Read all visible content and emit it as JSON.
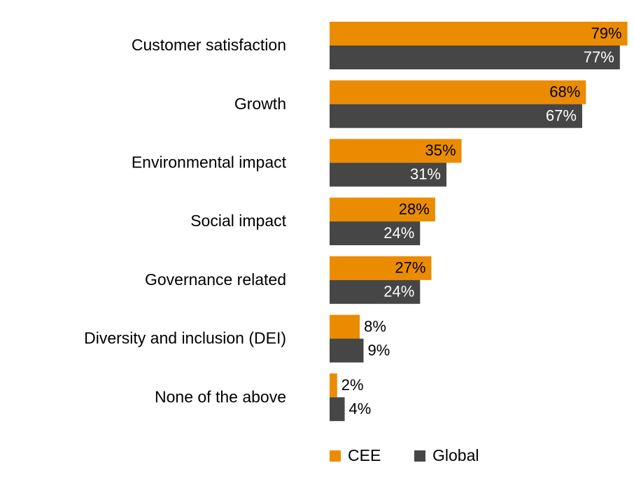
{
  "chart_data": {
    "type": "bar",
    "orientation": "horizontal",
    "categories": [
      "Customer satisfaction",
      "Growth",
      "Environmental impact",
      "Social impact",
      "Governance related",
      "Diversity and inclusion (DEI)",
      "None of the above"
    ],
    "series": [
      {
        "name": "CEE",
        "color": "#EB8C00",
        "values": [
          79,
          68,
          35,
          28,
          27,
          8,
          2
        ]
      },
      {
        "name": "Global",
        "color": "#464646",
        "values": [
          77,
          67,
          31,
          24,
          24,
          9,
          4
        ]
      }
    ],
    "value_suffix": "%",
    "xlim": [
      0,
      80
    ],
    "grid": false,
    "legend_position": "bottom"
  }
}
